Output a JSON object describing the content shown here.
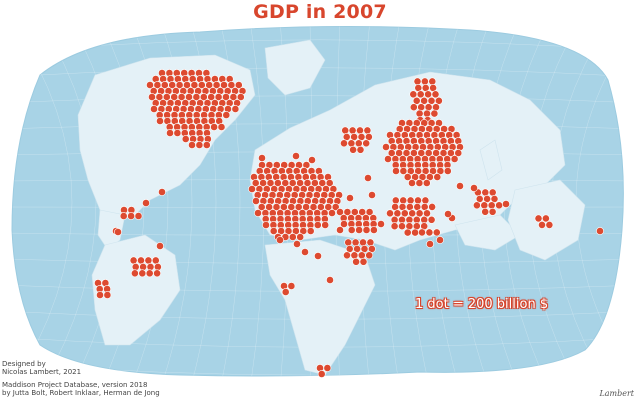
{
  "title": "GDP in 2007",
  "legend": {
    "text": "1 dot = 200 billion $"
  },
  "credits": {
    "designed_by_label": "Designed by",
    "designer": "Nicolas Lambert, 2021",
    "source_line1": "Maddison Project Database, version 2018",
    "source_line2": "by Jutta Bolt, Robert Inklaar, Herman de Jong"
  },
  "signature": "Lambert",
  "colors": {
    "ocean": "#a8d3e6",
    "ocean_edge": "#9ccbe0",
    "land": "#e4f1f7",
    "dot": "#dd4a30",
    "dot_stroke": "#ffffff",
    "title": "#d8462d"
  }
}
